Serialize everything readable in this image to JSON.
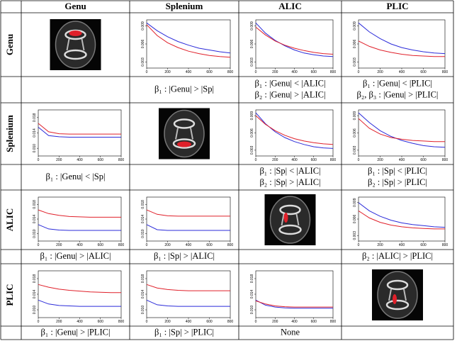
{
  "table": {
    "headers": [
      "Genu",
      "Splenium",
      "ALIC",
      "PLIC"
    ],
    "rows": [
      {
        "label": "Genu",
        "plots": {
          "1": {
            "type": "line",
            "x": [
              0,
              100,
              200,
              300,
              400,
              500,
              600,
              700,
              800
            ],
            "xlim": [
              0,
              800
            ],
            "xticks": [
              0,
              200,
              400,
              600,
              800
            ],
            "ylim": [
              0.002,
              0.01
            ],
            "yticks": [
              0.003,
              0.006,
              0.009
            ],
            "series": [
              {
                "color": "#2b2bd9",
                "values": [
                  0.0095,
                  0.0082,
                  0.0072,
                  0.0064,
                  0.0058,
                  0.0053,
                  0.005,
                  0.0047,
                  0.0045
                ]
              },
              {
                "color": "#e0202a",
                "values": [
                  0.0092,
                  0.0074,
                  0.0062,
                  0.0054,
                  0.0048,
                  0.0044,
                  0.0041,
                  0.0039,
                  0.0038
                ]
              }
            ]
          },
          "2": {
            "type": "line",
            "x": [
              0,
              100,
              200,
              300,
              400,
              500,
              600,
              700,
              800
            ],
            "xlim": [
              0,
              800
            ],
            "xticks": [
              0,
              200,
              400,
              600,
              800
            ],
            "ylim": [
              0.002,
              0.01
            ],
            "yticks": [
              0.003,
              0.006,
              0.009
            ],
            "series": [
              {
                "color": "#2b2bd9",
                "values": [
                  0.0095,
                  0.0078,
                  0.0066,
                  0.0057,
                  0.005,
                  0.0045,
                  0.0042,
                  0.004,
                  0.0039
                ]
              },
              {
                "color": "#e0202a",
                "values": [
                  0.0088,
                  0.0075,
                  0.0065,
                  0.0058,
                  0.0053,
                  0.0049,
                  0.0046,
                  0.0044,
                  0.0043
                ]
              }
            ]
          },
          "3": {
            "type": "line",
            "x": [
              0,
              100,
              200,
              300,
              400,
              500,
              600,
              700,
              800
            ],
            "xlim": [
              0,
              800
            ],
            "xticks": [
              0,
              200,
              400,
              600,
              800
            ],
            "ylim": [
              0.002,
              0.01
            ],
            "yticks": [
              0.003,
              0.006,
              0.009
            ],
            "series": [
              {
                "color": "#2b2bd9",
                "values": [
                  0.0095,
                  0.008,
                  0.0069,
                  0.006,
                  0.0054,
                  0.005,
                  0.0047,
                  0.0045,
                  0.0044
                ]
              },
              {
                "color": "#e0202a",
                "values": [
                  0.0065,
                  0.0056,
                  0.005,
                  0.0046,
                  0.0043,
                  0.0041,
                  0.004,
                  0.0039,
                  0.0039
                ]
              }
            ]
          }
        },
        "notes": {
          "1": [
            "β₁ : |Genu| > |Sp|"
          ],
          "2": [
            "β₁ : |Genu| < |ALIC|",
            "β₂ : |Genu| > |ALIC|"
          ],
          "3": [
            "β₁ : |Genu| < |PLIC|",
            "β₂, β₃ : |Genu| > |PLIC|"
          ]
        }
      },
      {
        "label": "Splenium",
        "plots": {
          "0": {
            "type": "line",
            "x": [
              0,
              100,
              200,
              300,
              400,
              500,
              600,
              700,
              800
            ],
            "xlim": [
              0,
              800
            ],
            "xticks": [
              0,
              200,
              400,
              600,
              800
            ],
            "ylim": [
              0.008,
              0.02
            ],
            "yticks": [
              {
                "value": 0.01,
                "label": "0.010"
              },
              0.014,
              0.018
            ],
            "series": [
              {
                "color": "#2b2bd9",
                "values": [
                  0.0155,
                  0.0133,
                  0.013,
                  0.0129,
                  0.0129,
                  0.0129,
                  0.0129,
                  0.0129,
                  0.0129
                ]
              },
              {
                "color": "#e0202a",
                "values": [
                  0.0165,
                  0.0143,
                  0.0138,
                  0.0137,
                  0.0137,
                  0.0137,
                  0.0137,
                  0.0137,
                  0.0137
                ]
              }
            ]
          },
          "2": {
            "type": "line",
            "x": [
              0,
              100,
              200,
              300,
              400,
              500,
              600,
              700,
              800
            ],
            "xlim": [
              0,
              800
            ],
            "xticks": [
              0,
              200,
              400,
              600,
              800
            ],
            "ylim": [
              0.002,
              0.01
            ],
            "yticks": [
              0.003,
              0.006,
              0.009
            ],
            "series": [
              {
                "color": "#2b2bd9",
                "values": [
                  0.0095,
                  0.0076,
                  0.0062,
                  0.0052,
                  0.0045,
                  0.004,
                  0.0036,
                  0.0034,
                  0.0033
                ]
              },
              {
                "color": "#e0202a",
                "values": [
                  0.009,
                  0.0075,
                  0.0064,
                  0.0056,
                  0.005,
                  0.0046,
                  0.0043,
                  0.0041,
                  0.004
                ]
              }
            ]
          },
          "3": {
            "type": "line",
            "x": [
              0,
              100,
              200,
              300,
              400,
              500,
              600,
              700,
              800
            ],
            "xlim": [
              0,
              800
            ],
            "xticks": [
              0,
              200,
              400,
              600,
              800
            ],
            "ylim": [
              0.002,
              0.01
            ],
            "yticks": [
              0.003,
              0.006,
              0.009
            ],
            "series": [
              {
                "color": "#2b2bd9",
                "values": [
                  0.0095,
                  0.0078,
                  0.0064,
                  0.0054,
                  0.0047,
                  0.0042,
                  0.0038,
                  0.0036,
                  0.0035
                ]
              },
              {
                "color": "#e0202a",
                "values": [
                  0.0085,
                  0.0068,
                  0.0058,
                  0.0052,
                  0.0049,
                  0.0047,
                  0.0046,
                  0.0045,
                  0.0045
                ]
              }
            ]
          }
        },
        "notes": {
          "0": [
            "β₁ : |Genu| < |Sp|"
          ],
          "2": [
            "β₁ : |Sp| < |ALIC|",
            "β₂ : |Sp| > |ALIC|"
          ],
          "3": [
            "β₁ : |Sp| < |PLIC|",
            "β₂ : |Sp| > |PLIC|"
          ]
        }
      },
      {
        "label": "ALIC",
        "plots": {
          "0": {
            "type": "line",
            "x": [
              0,
              100,
              200,
              300,
              400,
              500,
              600,
              700,
              800
            ],
            "xlim": [
              0,
              800
            ],
            "xticks": [
              0,
              200,
              400,
              600,
              800
            ],
            "ylim": [
              0.008,
              0.02
            ],
            "yticks": [
              {
                "value": 0.01,
                "label": "0.010"
              },
              0.014,
              0.018
            ],
            "series": [
              {
                "color": "#2b2bd9",
                "values": [
                  0.0125,
                  0.0113,
                  0.011,
                  0.0109,
                  0.0109,
                  0.0109,
                  0.0109,
                  0.0109,
                  0.0109
                ]
              },
              {
                "color": "#e0202a",
                "values": [
                  0.0165,
                  0.0155,
                  0.015,
                  0.0147,
                  0.0146,
                  0.0145,
                  0.0145,
                  0.0145,
                  0.0145
                ]
              }
            ]
          },
          "1": {
            "type": "line",
            "x": [
              0,
              100,
              200,
              300,
              400,
              500,
              600,
              700,
              800
            ],
            "xlim": [
              0,
              800
            ],
            "xticks": [
              0,
              200,
              400,
              600,
              800
            ],
            "ylim": [
              0.008,
              0.02
            ],
            "yticks": [
              {
                "value": 0.01,
                "label": "0.010"
              },
              0.014,
              0.018
            ],
            "series": [
              {
                "color": "#2b2bd9",
                "values": [
                  0.0125,
                  0.0111,
                  0.0109,
                  0.0109,
                  0.0109,
                  0.0109,
                  0.0109,
                  0.0109,
                  0.0109
                ]
              },
              {
                "color": "#e0202a",
                "values": [
                  0.0165,
                  0.0153,
                  0.0149,
                  0.0148,
                  0.0148,
                  0.0148,
                  0.0148,
                  0.0148,
                  0.0148
                ]
              }
            ]
          },
          "3": {
            "type": "line",
            "x": [
              0,
              100,
              200,
              300,
              400,
              500,
              600,
              700,
              800
            ],
            "xlim": [
              0,
              800
            ],
            "xticks": [
              0,
              200,
              400,
              600,
              800
            ],
            "ylim": [
              0.002,
              0.01
            ],
            "yticks": [
              0.003,
              0.006,
              0.009
            ],
            "series": [
              {
                "color": "#2b2bd9",
                "values": [
                  0.009,
                  0.0075,
                  0.0065,
                  0.0058,
                  0.0053,
                  0.005,
                  0.0048,
                  0.0046,
                  0.0045
                ]
              },
              {
                "color": "#e0202a",
                "values": [
                  0.0075,
                  0.0062,
                  0.0054,
                  0.0049,
                  0.0046,
                  0.0044,
                  0.0043,
                  0.0042,
                  0.0042
                ]
              }
            ]
          }
        },
        "notes": {
          "0": [
            "β₁ : |Genu| > |ALIC|"
          ],
          "1": [
            "β₁ : |Sp| > |ALIC|"
          ],
          "3": [
            "β₂ : |ALIC| > |PLIC|"
          ]
        }
      },
      {
        "label": "PLIC",
        "plots": {
          "0": {
            "type": "line",
            "x": [
              0,
              100,
              200,
              300,
              400,
              500,
              600,
              700,
              800
            ],
            "xlim": [
              0,
              800
            ],
            "xticks": [
              0,
              200,
              400,
              600,
              800
            ],
            "ylim": [
              0.008,
              0.02
            ],
            "yticks": [
              {
                "value": 0.01,
                "label": "0.010"
              },
              0.014,
              0.018
            ],
            "series": [
              {
                "color": "#2b2bd9",
                "values": [
                  0.0125,
                  0.0115,
                  0.0111,
                  0.011,
                  0.0109,
                  0.0109,
                  0.0109,
                  0.0109,
                  0.0109
                ]
              },
              {
                "color": "#e0202a",
                "values": [
                  0.0165,
                  0.0158,
                  0.0153,
                  0.015,
                  0.0148,
                  0.0146,
                  0.0145,
                  0.0144,
                  0.0144
                ]
              }
            ]
          },
          "1": {
            "type": "line",
            "x": [
              0,
              100,
              200,
              300,
              400,
              500,
              600,
              700,
              800
            ],
            "xlim": [
              0,
              800
            ],
            "xticks": [
              0,
              200,
              400,
              600,
              800
            ],
            "ylim": [
              0.008,
              0.02
            ],
            "yticks": [
              {
                "value": 0.01,
                "label": "0.010"
              },
              0.014,
              0.018
            ],
            "series": [
              {
                "color": "#2b2bd9",
                "values": [
                  0.0125,
                  0.0113,
                  0.011,
                  0.0109,
                  0.0109,
                  0.0109,
                  0.0109,
                  0.0109,
                  0.0109
                ]
              },
              {
                "color": "#e0202a",
                "values": [
                  0.0165,
                  0.0156,
                  0.0152,
                  0.015,
                  0.0149,
                  0.0149,
                  0.0149,
                  0.0149,
                  0.0149
                ]
              }
            ]
          },
          "2": {
            "type": "line",
            "x": [
              0,
              100,
              200,
              300,
              400,
              500,
              600,
              700,
              800
            ],
            "xlim": [
              0,
              800
            ],
            "xticks": [
              0,
              200,
              400,
              600,
              800
            ],
            "ylim": [
              0.008,
              0.02
            ],
            "yticks": [
              {
                "value": 0.01,
                "label": "0.010"
              },
              0.014,
              0.018
            ],
            "series": [
              {
                "color": "#2b2bd9",
                "values": [
                  0.0125,
                  0.0112,
                  0.0107,
                  0.0105,
                  0.0104,
                  0.0104,
                  0.0104,
                  0.0104,
                  0.0104
                ]
              },
              {
                "color": "#e0202a",
                "values": [
                  0.0123,
                  0.0115,
                  0.011,
                  0.0108,
                  0.0107,
                  0.0107,
                  0.0107,
                  0.0107,
                  0.0107
                ]
              }
            ]
          }
        },
        "notes": {
          "0": [
            "β₁ : |Genu| > |PLIC|"
          ],
          "1": [
            "β₁ : |Sp| > |PLIC|"
          ],
          "2": [
            "None"
          ]
        }
      }
    ]
  }
}
